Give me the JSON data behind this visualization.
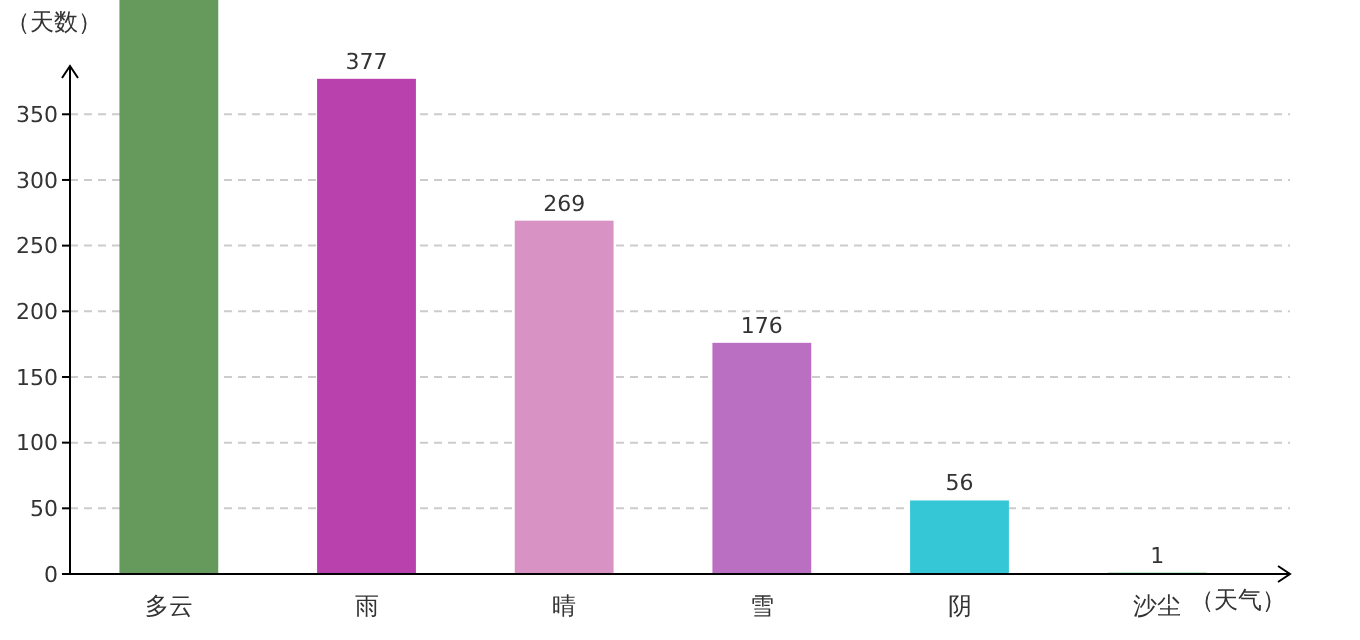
{
  "chart_data": {
    "type": "bar",
    "ylabel": "（天数）",
    "xlabel": "（天气）",
    "categories": [
      "多云",
      "雨",
      "晴",
      "雪",
      "阴",
      "沙尘"
    ],
    "values": [
      437,
      377,
      269,
      176,
      56,
      1
    ],
    "colors": [
      "#659a5c",
      "#b941ad",
      "#d893c4",
      "#bb6fc3",
      "#36c7d6",
      "#3cb44b"
    ],
    "value_labels": [
      null,
      "377",
      "269",
      "176",
      "56",
      "1"
    ],
    "ylim": [
      0,
      437
    ],
    "yticks": [
      0,
      50,
      100,
      150,
      200,
      250,
      300,
      350
    ],
    "grid": "y"
  }
}
